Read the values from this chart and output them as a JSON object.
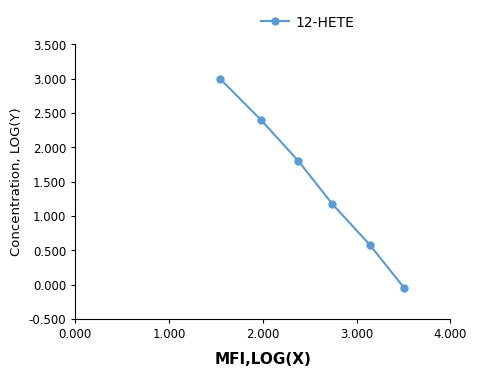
{
  "x": [
    1.544,
    1.982,
    2.38,
    2.74,
    3.14,
    3.505
  ],
  "y": [
    3.0,
    2.398,
    1.8,
    1.176,
    0.58,
    -0.046
  ],
  "line_color": "#5b9bd5",
  "marker": "o",
  "marker_size": 5,
  "legend_label": "12-HETE",
  "xlabel": "MFI,LOG(X)",
  "ylabel": "Concentration, LOG(Y)",
  "xlim": [
    0.0,
    4.0
  ],
  "ylim": [
    -0.5,
    3.5
  ],
  "xticks": [
    0.0,
    1.0,
    2.0,
    3.0,
    4.0
  ],
  "yticks": [
    -0.5,
    0.0,
    0.5,
    1.0,
    1.5,
    2.0,
    2.5,
    3.0,
    3.5
  ],
  "xlabel_fontsize": 11,
  "ylabel_fontsize": 9.5,
  "tick_fontsize": 8.5,
  "legend_fontsize": 10,
  "bg_color": "#ffffff"
}
